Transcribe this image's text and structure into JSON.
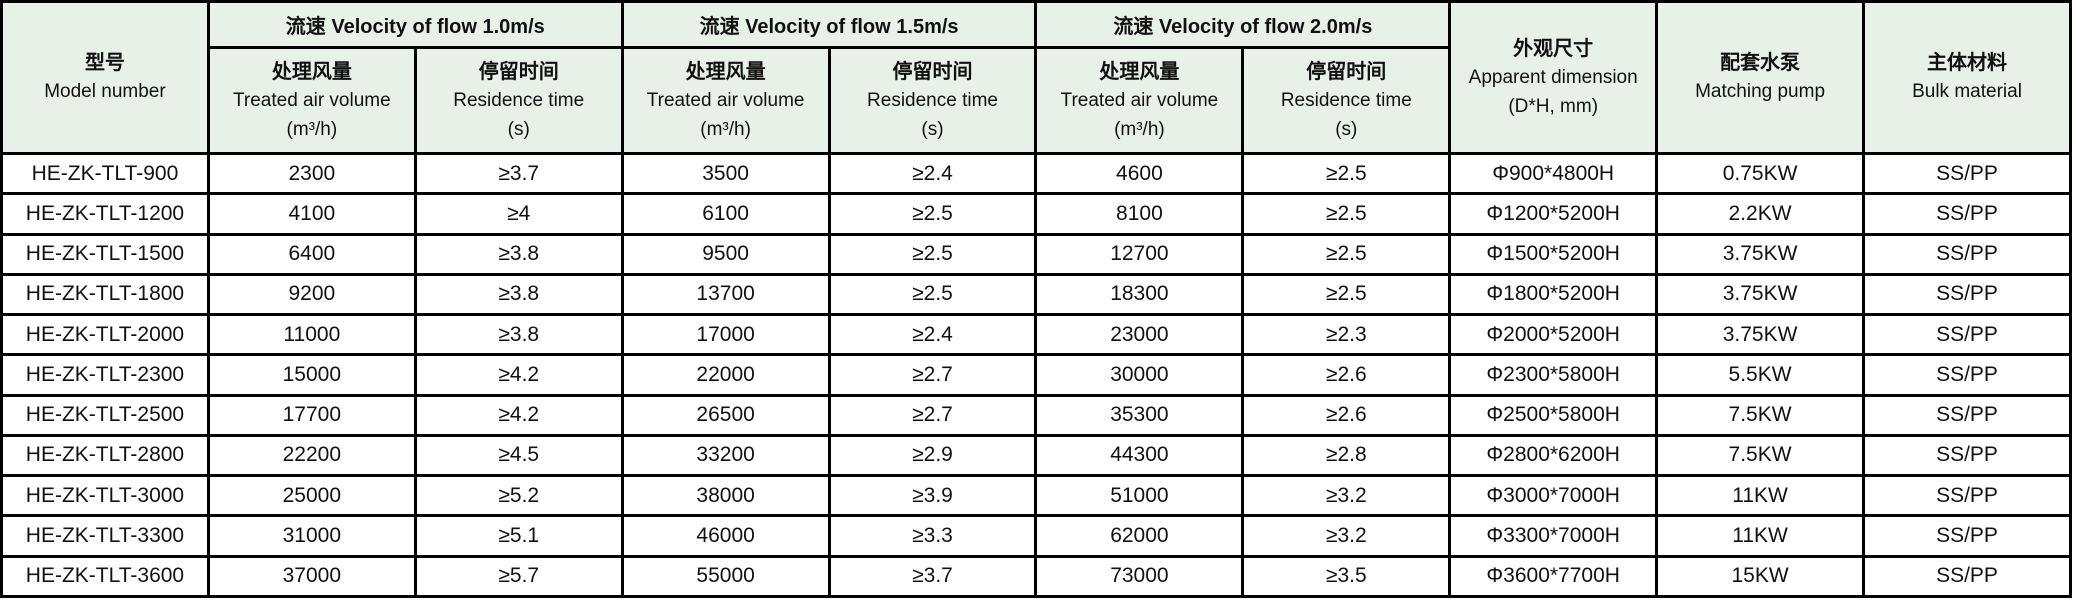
{
  "colors": {
    "header_bg": "#e7f1e8",
    "border": "#000000",
    "text": "#111111",
    "row_bg": "#ffffff"
  },
  "table": {
    "header": {
      "model": {
        "zh": "型号",
        "en": "Model number"
      },
      "groups": [
        {
          "label": "流速 Velocity of flow 1.0m/s"
        },
        {
          "label": "流速 Velocity of flow 1.5m/s"
        },
        {
          "label": "流速 Velocity of flow 2.0m/s"
        }
      ],
      "treated": {
        "zh": "处理风量",
        "en": "Treated air volume",
        "unit": "(m³/h)"
      },
      "residence": {
        "zh": "停留时间",
        "en": "Residence time",
        "unit": "(s)"
      },
      "dimension": {
        "zh": "外观尺寸",
        "en": "Apparent dimension",
        "unit": "(D*H, mm)"
      },
      "pump": {
        "zh": "配套水泵",
        "en": "Matching pump"
      },
      "material": {
        "zh": "主体材料",
        "en": "Bulk material"
      }
    },
    "rows": [
      {
        "model": "HE-ZK-TLT-900",
        "v10_air": "2300",
        "v10_res": "≥3.7",
        "v15_air": "3500",
        "v15_res": "≥2.4",
        "v20_air": "4600",
        "v20_res": "≥2.5",
        "dimension": "Φ900*4800H",
        "pump": "0.75KW",
        "material": "SS/PP"
      },
      {
        "model": "HE-ZK-TLT-1200",
        "v10_air": "4100",
        "v10_res": "≥4",
        "v15_air": "6100",
        "v15_res": "≥2.5",
        "v20_air": "8100",
        "v20_res": "≥2.5",
        "dimension": "Φ1200*5200H",
        "pump": "2.2KW",
        "material": "SS/PP"
      },
      {
        "model": "HE-ZK-TLT-1500",
        "v10_air": "6400",
        "v10_res": "≥3.8",
        "v15_air": "9500",
        "v15_res": "≥2.5",
        "v20_air": "12700",
        "v20_res": "≥2.5",
        "dimension": "Φ1500*5200H",
        "pump": "3.75KW",
        "material": "SS/PP"
      },
      {
        "model": "HE-ZK-TLT-1800",
        "v10_air": "9200",
        "v10_res": "≥3.8",
        "v15_air": "13700",
        "v15_res": "≥2.5",
        "v20_air": "18300",
        "v20_res": "≥2.5",
        "dimension": "Φ1800*5200H",
        "pump": "3.75KW",
        "material": "SS/PP"
      },
      {
        "model": "HE-ZK-TLT-2000",
        "v10_air": "11000",
        "v10_res": "≥3.8",
        "v15_air": "17000",
        "v15_res": "≥2.4",
        "v20_air": "23000",
        "v20_res": "≥2.3",
        "dimension": "Φ2000*5200H",
        "pump": "3.75KW",
        "material": "SS/PP"
      },
      {
        "model": "HE-ZK-TLT-2300",
        "v10_air": "15000",
        "v10_res": "≥4.2",
        "v15_air": "22000",
        "v15_res": "≥2.7",
        "v20_air": "30000",
        "v20_res": "≥2.6",
        "dimension": "Φ2300*5800H",
        "pump": "5.5KW",
        "material": "SS/PP"
      },
      {
        "model": "HE-ZK-TLT-2500",
        "v10_air": "17700",
        "v10_res": "≥4.2",
        "v15_air": "26500",
        "v15_res": "≥2.7",
        "v20_air": "35300",
        "v20_res": "≥2.6",
        "dimension": "Φ2500*5800H",
        "pump": "7.5KW",
        "material": "SS/PP"
      },
      {
        "model": "HE-ZK-TLT-2800",
        "v10_air": "22200",
        "v10_res": "≥4.5",
        "v15_air": "33200",
        "v15_res": "≥2.9",
        "v20_air": "44300",
        "v20_res": "≥2.8",
        "dimension": "Φ2800*6200H",
        "pump": "7.5KW",
        "material": "SS/PP"
      },
      {
        "model": "HE-ZK-TLT-3000",
        "v10_air": "25000",
        "v10_res": "≥5.2",
        "v15_air": "38000",
        "v15_res": "≥3.9",
        "v20_air": "51000",
        "v20_res": "≥3.2",
        "dimension": "Φ3000*7000H",
        "pump": "11KW",
        "material": "SS/PP"
      },
      {
        "model": "HE-ZK-TLT-3300",
        "v10_air": "31000",
        "v10_res": "≥5.1",
        "v15_air": "46000",
        "v15_res": "≥3.3",
        "v20_air": "62000",
        "v20_res": "≥3.2",
        "dimension": "Φ3300*7000H",
        "pump": "11KW",
        "material": "SS/PP"
      },
      {
        "model": "HE-ZK-TLT-3600",
        "v10_air": "37000",
        "v10_res": "≥5.7",
        "v15_air": "55000",
        "v15_res": "≥3.7",
        "v20_air": "73000",
        "v20_res": "≥3.5",
        "dimension": "Φ3600*7700H",
        "pump": "15KW",
        "material": "SS/PP"
      }
    ]
  }
}
